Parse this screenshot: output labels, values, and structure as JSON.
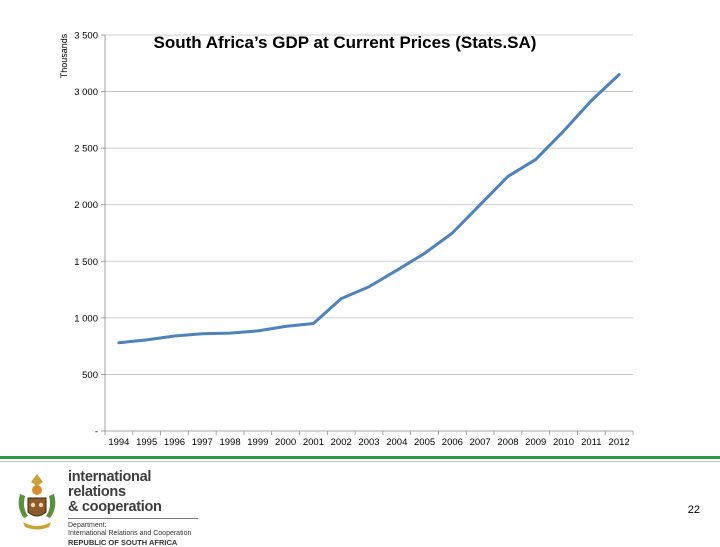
{
  "chart_data": {
    "type": "line",
    "title": "South Africa’s GDP at Current Prices (Stats.SA)",
    "units_label": "Thousands",
    "xlabel": "",
    "ylabel": "",
    "categories": [
      "1994",
      "1995",
      "1996",
      "1997",
      "1998",
      "1999",
      "2000",
      "2001",
      "2002",
      "2003",
      "2004",
      "2005",
      "2006",
      "2007",
      "2008",
      "2009",
      "2010",
      "2011",
      "2012"
    ],
    "series": [
      {
        "values": [
          780,
          805,
          840,
          860,
          865,
          885,
          925,
          950,
          1170,
          1275,
          1420,
          1570,
          1750,
          2000,
          2250,
          2400,
          2650,
          2920,
          3150
        ],
        "color": "#4f81bd"
      }
    ],
    "ylim": [
      0,
      3500
    ],
    "y_ticks": [
      0,
      500,
      1000,
      1500,
      2000,
      2500,
      3000,
      3500
    ],
    "y_tick_labels": [
      "-",
      "500",
      "1 000",
      "1 500",
      "2 000",
      "2 500",
      "3 000",
      "3 500"
    ],
    "grid": true
  },
  "footer": {
    "brand_line1": "international relations",
    "brand_line2": "& cooperation",
    "dept_line1": "Department:",
    "dept_line2": "International Relations and Cooperation",
    "dept_line3": "REPUBLIC OF SOUTH AFRICA",
    "page_number": "22",
    "accent_color": "#2e9a3f"
  }
}
